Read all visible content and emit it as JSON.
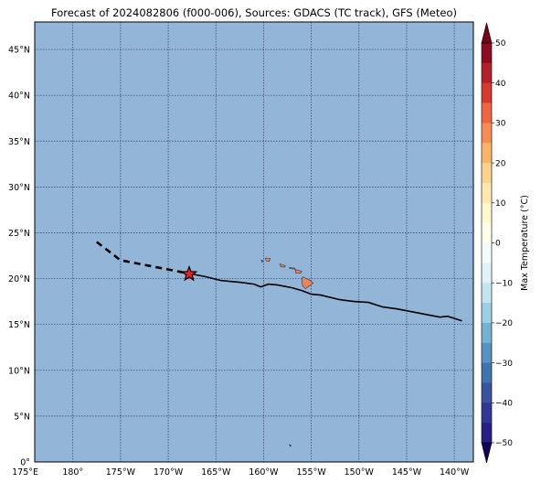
{
  "title": "Forecast of 2024082806 (f000-006), Sources: GDACS (TC track), GFS (Meteo)",
  "map": {
    "lon_range": [
      176,
      -138
    ],
    "lat_range": [
      0,
      48
    ],
    "ocean_color": "#92b5d8",
    "lat_ticks": [
      {
        "value": 45,
        "label": "45°N"
      },
      {
        "value": 40,
        "label": "40°N"
      },
      {
        "value": 35,
        "label": "35°N"
      },
      {
        "value": 30,
        "label": "30°N"
      },
      {
        "value": 25,
        "label": "25°N"
      },
      {
        "value": 20,
        "label": "20°N"
      },
      {
        "value": 15,
        "label": "15°N"
      },
      {
        "value": 10,
        "label": "10°N"
      },
      {
        "value": 5,
        "label": "5°N"
      },
      {
        "value": 0,
        "label": "0°"
      }
    ],
    "lon_ticks": [
      {
        "value": 175,
        "label": "175°E"
      },
      {
        "value": 180,
        "label": "180°"
      },
      {
        "value": -175,
        "label": "175°W"
      },
      {
        "value": -170,
        "label": "170°W"
      },
      {
        "value": -165,
        "label": "165°W"
      },
      {
        "value": -160,
        "label": "160°W"
      },
      {
        "value": -155,
        "label": "155°W"
      },
      {
        "value": -150,
        "label": "150°W"
      },
      {
        "value": -145,
        "label": "145°W"
      },
      {
        "value": -140,
        "label": "140°W"
      }
    ],
    "forecast_track_dashed": [
      [
        -177.5,
        24.0
      ],
      [
        -176.0,
        22.8
      ],
      [
        -175.0,
        22.0
      ],
      [
        -173.0,
        21.6
      ],
      [
        -170.0,
        21.0
      ],
      [
        -168.0,
        20.6
      ]
    ],
    "observed_track_solid": [
      [
        -168.0,
        20.6
      ],
      [
        -166.0,
        20.2
      ],
      [
        -164.5,
        19.8
      ],
      [
        -162.5,
        19.6
      ],
      [
        -161.0,
        19.4
      ],
      [
        -160.3,
        19.1
      ],
      [
        -159.5,
        19.4
      ],
      [
        -158.5,
        19.3
      ],
      [
        -157.0,
        19.0
      ],
      [
        -156.0,
        18.7
      ],
      [
        -155.0,
        18.3
      ],
      [
        -154.0,
        18.2
      ],
      [
        -152.0,
        17.7
      ],
      [
        -150.5,
        17.5
      ],
      [
        -149.0,
        17.4
      ],
      [
        -147.5,
        16.9
      ],
      [
        -146.0,
        16.7
      ],
      [
        -144.5,
        16.4
      ],
      [
        -143.0,
        16.1
      ],
      [
        -141.5,
        15.8
      ],
      [
        -140.7,
        15.9
      ],
      [
        -139.2,
        15.4
      ]
    ],
    "storm_position": {
      "lon": -167.8,
      "lat": 20.5,
      "color": "#e8201e"
    },
    "islands": [
      {
        "name": "Hawaii",
        "color": "#e8855a",
        "points": [
          [
            -155.9,
            20.2
          ],
          [
            -155.1,
            19.8
          ],
          [
            -154.8,
            19.5
          ],
          [
            -155.6,
            18.9
          ],
          [
            -155.9,
            19.2
          ],
          [
            -156.0,
            19.7
          ]
        ]
      },
      {
        "name": "Maui",
        "color": "#e8855a",
        "points": [
          [
            -156.7,
            21.0
          ],
          [
            -156.0,
            20.8
          ],
          [
            -156.1,
            20.6
          ],
          [
            -156.6,
            20.6
          ]
        ]
      },
      {
        "name": "Molokai",
        "color": "#e8855a",
        "points": [
          [
            -157.3,
            21.2
          ],
          [
            -156.7,
            21.15
          ],
          [
            -156.75,
            21.05
          ],
          [
            -157.25,
            21.1
          ]
        ]
      },
      {
        "name": "Oahu",
        "color": "#e8855a",
        "points": [
          [
            -158.3,
            21.6
          ],
          [
            -157.7,
            21.4
          ],
          [
            -157.8,
            21.25
          ],
          [
            -158.2,
            21.3
          ]
        ]
      },
      {
        "name": "Kauai",
        "color": "#e8855a",
        "points": [
          [
            -159.8,
            22.25
          ],
          [
            -159.3,
            22.2
          ],
          [
            -159.4,
            21.9
          ],
          [
            -159.75,
            21.95
          ]
        ]
      },
      {
        "name": "Niihau",
        "color": "#5a9e6a",
        "points": [
          [
            -160.25,
            22.0
          ],
          [
            -160.05,
            21.95
          ],
          [
            -160.15,
            21.8
          ]
        ]
      },
      {
        "name": "Johnston",
        "color": "#333333",
        "points": [
          [
            -157.3,
            1.9
          ],
          [
            -157.1,
            1.8
          ],
          [
            -157.2,
            1.7
          ]
        ]
      }
    ]
  },
  "colorbar": {
    "label": "Max Temperature (°C)",
    "ticks": [
      {
        "value": 50,
        "label": "50"
      },
      {
        "value": 40,
        "label": "40"
      },
      {
        "value": 30,
        "label": "30"
      },
      {
        "value": 20,
        "label": "20"
      },
      {
        "value": 10,
        "label": "10"
      },
      {
        "value": 0,
        "label": "0"
      },
      {
        "value": -10,
        "label": "−10"
      },
      {
        "value": -20,
        "label": "−20"
      },
      {
        "value": -30,
        "label": "−30"
      },
      {
        "value": -40,
        "label": "−40"
      },
      {
        "value": -50,
        "label": "−50"
      }
    ],
    "bins": [
      {
        "from": 45,
        "to": 50,
        "color": "#8e0b23"
      },
      {
        "from": 40,
        "to": 45,
        "color": "#b51f29"
      },
      {
        "from": 35,
        "to": 40,
        "color": "#d43b2e"
      },
      {
        "from": 30,
        "to": 35,
        "color": "#ef6441"
      },
      {
        "from": 25,
        "to": 30,
        "color": "#f88c54"
      },
      {
        "from": 20,
        "to": 25,
        "color": "#fbb366"
      },
      {
        "from": 15,
        "to": 20,
        "color": "#fdd38a"
      },
      {
        "from": 10,
        "to": 15,
        "color": "#fee8ad"
      },
      {
        "from": 5,
        "to": 10,
        "color": "#fff7ce"
      },
      {
        "from": 0,
        "to": 5,
        "color": "#ffffea"
      },
      {
        "from": -5,
        "to": 0,
        "color": "#f5fbfd"
      },
      {
        "from": -10,
        "to": -5,
        "color": "#e1f3f8"
      },
      {
        "from": -15,
        "to": -10,
        "color": "#c3e5f0"
      },
      {
        "from": -20,
        "to": -15,
        "color": "#9bd0e4"
      },
      {
        "from": -25,
        "to": -20,
        "color": "#74b2d4"
      },
      {
        "from": -30,
        "to": -25,
        "color": "#5493c4"
      },
      {
        "from": -35,
        "to": -30,
        "color": "#3f73b1"
      },
      {
        "from": -40,
        "to": -35,
        "color": "#3a53a0"
      },
      {
        "from": -45,
        "to": -40,
        "color": "#333797"
      },
      {
        "from": -50,
        "to": -45,
        "color": "#271e8a"
      }
    ],
    "over_color": "#7a0016",
    "under_color": "#12005a"
  }
}
